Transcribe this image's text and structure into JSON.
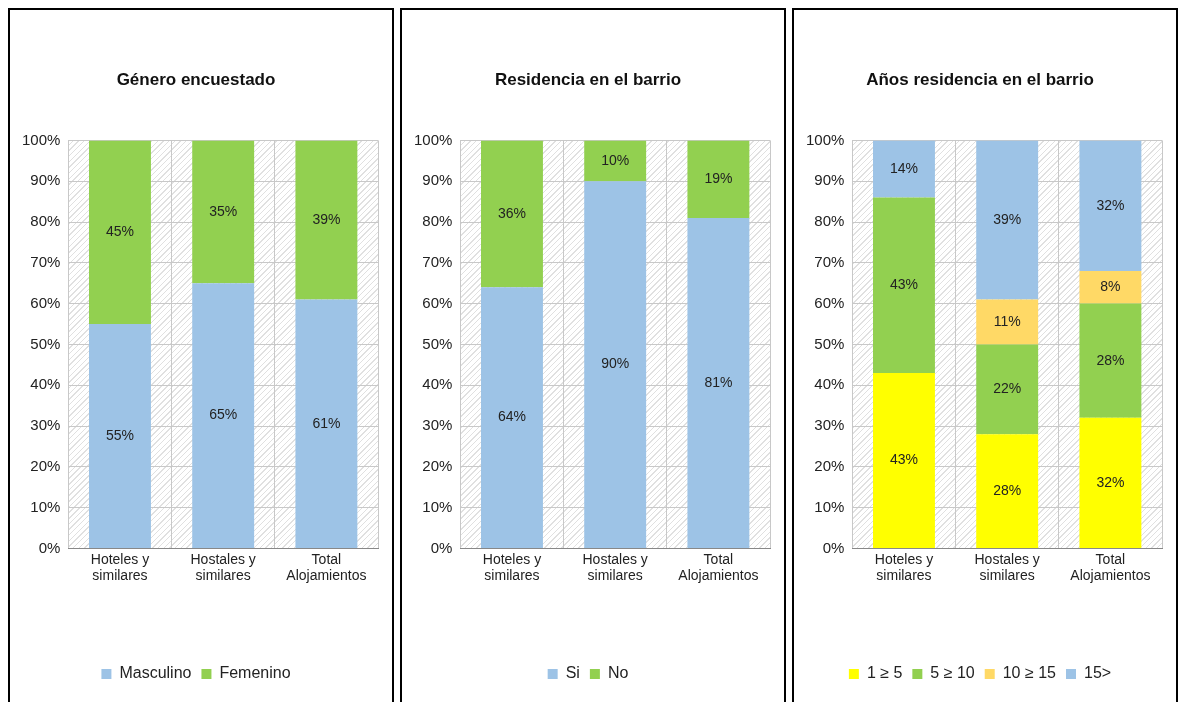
{
  "chart_data": [
    {
      "type": "bar",
      "title": "Género encuestado",
      "categories": [
        "Hoteles y similares",
        "Hostales y similares",
        "Total Alojamientos"
      ],
      "stacked": true,
      "grid": true,
      "legend": "bottom",
      "ylim": [
        0,
        100
      ],
      "yticks": [
        {
          "value": 0,
          "label": "0%"
        },
        {
          "value": 10,
          "label": "10%"
        },
        {
          "value": 20,
          "label": "20%"
        },
        {
          "value": 30,
          "label": "30%"
        },
        {
          "value": 40,
          "label": "40%"
        },
        {
          "value": 50,
          "label": "50%"
        },
        {
          "value": 60,
          "label": "60%"
        },
        {
          "value": 70,
          "label": "70%"
        },
        {
          "value": 80,
          "label": "80%"
        },
        {
          "value": 90,
          "label": "90%"
        },
        {
          "value": 100,
          "label": "100%"
        }
      ],
      "series": [
        {
          "name": "Masculino",
          "color": "#9dc3e6",
          "values": [
            55,
            65,
            61
          ],
          "value_labels": [
            "55%",
            "65%",
            "61%"
          ]
        },
        {
          "name": "Femenino",
          "color": "#92d050",
          "values": [
            45,
            35,
            39
          ],
          "value_labels": [
            "45%",
            "35%",
            "39%"
          ]
        }
      ]
    },
    {
      "type": "bar",
      "title": "Residencia en el barrio",
      "categories": [
        "Hoteles y similares",
        "Hostales y similares",
        "Total Alojamientos"
      ],
      "stacked": true,
      "grid": true,
      "legend": "bottom",
      "ylim": [
        0,
        100
      ],
      "yticks": [
        {
          "value": 0,
          "label": "0%"
        },
        {
          "value": 10,
          "label": "10%"
        },
        {
          "value": 20,
          "label": "20%"
        },
        {
          "value": 30,
          "label": "30%"
        },
        {
          "value": 40,
          "label": "40%"
        },
        {
          "value": 50,
          "label": "50%"
        },
        {
          "value": 60,
          "label": "60%"
        },
        {
          "value": 70,
          "label": "70%"
        },
        {
          "value": 80,
          "label": "80%"
        },
        {
          "value": 90,
          "label": "90%"
        },
        {
          "value": 100,
          "label": "100%"
        }
      ],
      "series": [
        {
          "name": "Si",
          "color": "#9dc3e6",
          "values": [
            64,
            90,
            81
          ],
          "value_labels": [
            "64%",
            "90%",
            "81%"
          ]
        },
        {
          "name": "No",
          "color": "#92d050",
          "values": [
            36,
            10,
            19
          ],
          "value_labels": [
            "36%",
            "10%",
            "19%"
          ]
        }
      ]
    },
    {
      "type": "bar",
      "title": "Años residencia en el barrio",
      "categories": [
        "Hoteles y similares",
        "Hostales y similares",
        "Total Alojamientos"
      ],
      "stacked": true,
      "grid": true,
      "legend": "bottom",
      "ylim": [
        0,
        100
      ],
      "yticks": [
        {
          "value": 0,
          "label": "0%"
        },
        {
          "value": 10,
          "label": "10%"
        },
        {
          "value": 20,
          "label": "20%"
        },
        {
          "value": 30,
          "label": "30%"
        },
        {
          "value": 40,
          "label": "40%"
        },
        {
          "value": 50,
          "label": "50%"
        },
        {
          "value": 60,
          "label": "60%"
        },
        {
          "value": 70,
          "label": "70%"
        },
        {
          "value": 80,
          "label": "80%"
        },
        {
          "value": 90,
          "label": "90%"
        },
        {
          "value": 100,
          "label": "100%"
        }
      ],
      "series": [
        {
          "name": "1 ≥ 5",
          "color": "#ffff00",
          "values": [
            43,
            28,
            32
          ],
          "value_labels": [
            "43%",
            "28%",
            "32%"
          ]
        },
        {
          "name": "5 ≥ 10",
          "color": "#92d050",
          "values": [
            43,
            22,
            28
          ],
          "value_labels": [
            "43%",
            "22%",
            "28%"
          ]
        },
        {
          "name": "10 ≥ 15",
          "color": "#ffd966",
          "values": [
            null,
            11,
            8
          ],
          "value_labels": [
            null,
            "11%",
            "8%"
          ]
        },
        {
          "name": "15>",
          "color": "#9dc3e6",
          "values": [
            14,
            39,
            32
          ],
          "value_labels": [
            "14%",
            "39%",
            "32%"
          ]
        }
      ]
    }
  ]
}
